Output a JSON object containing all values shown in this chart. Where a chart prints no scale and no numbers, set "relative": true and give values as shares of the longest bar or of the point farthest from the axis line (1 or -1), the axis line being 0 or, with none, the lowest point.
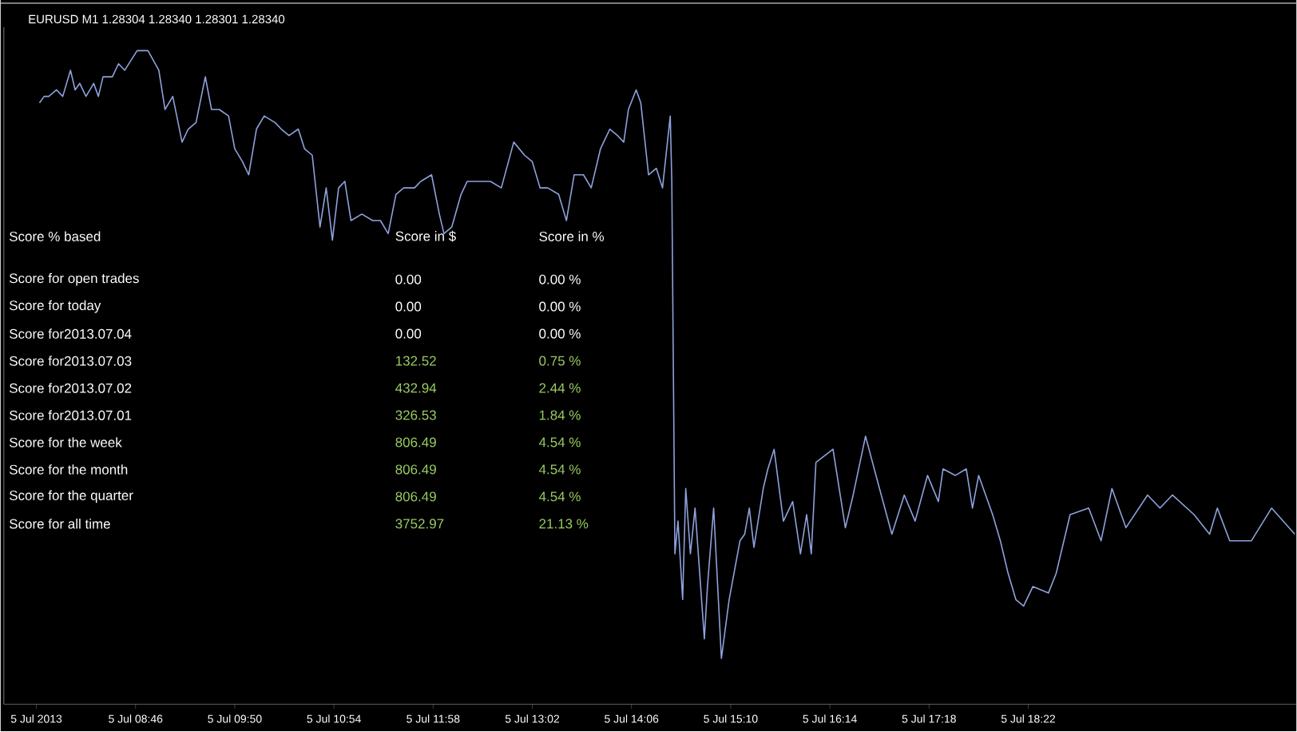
{
  "chart_data": {
    "type": "line",
    "title": "EURUSD M1  1.28304 1.28340 1.28301 1.28340",
    "relative": true,
    "x": [
      "2013-07-05T07:44",
      "2013-07-05T07:47",
      "2013-07-05T07:50",
      "2013-07-05T07:55",
      "2013-07-05T07:59",
      "2013-07-05T08:04",
      "2013-07-05T08:07",
      "2013-07-05T08:10",
      "2013-07-05T08:14",
      "2013-07-05T08:19",
      "2013-07-05T08:22",
      "2013-07-05T08:25",
      "2013-07-05T08:31",
      "2013-07-05T08:35",
      "2013-07-05T08:39",
      "2013-07-05T08:47",
      "2013-07-05T08:54",
      "2013-07-05T09:01",
      "2013-07-05T09:05",
      "2013-07-05T09:10",
      "2013-07-05T09:16",
      "2013-07-05T09:20",
      "2013-07-05T09:25",
      "2013-07-05T09:31",
      "2013-07-05T09:35",
      "2013-07-05T09:40",
      "2013-07-05T09:46",
      "2013-07-05T09:50",
      "2013-07-05T09:55",
      "2013-07-05T09:59",
      "2013-07-05T10:04",
      "2013-07-05T10:09",
      "2013-07-05T10:16",
      "2013-07-05T10:20",
      "2013-07-05T10:25",
      "2013-07-05T10:31",
      "2013-07-05T10:35",
      "2013-07-05T10:40",
      "2013-07-05T10:45",
      "2013-07-05T10:49",
      "2013-07-05T10:53",
      "2013-07-05T10:57",
      "2013-07-05T11:01",
      "2013-07-05T11:05",
      "2013-07-05T11:12",
      "2013-07-05T11:19",
      "2013-07-05T11:24",
      "2013-07-05T11:29",
      "2013-07-05T11:34",
      "2013-07-05T11:39",
      "2013-07-05T11:46",
      "2013-07-05T11:50",
      "2013-07-05T11:57",
      "2013-07-05T12:02",
      "2013-07-05T12:05",
      "2013-07-05T12:10",
      "2013-07-05T12:16",
      "2013-07-05T12:20",
      "2013-07-05T12:29",
      "2013-07-05T12:35",
      "2013-07-05T12:42",
      "2013-07-05T12:50",
      "2013-07-05T12:57",
      "2013-07-05T13:02",
      "2013-07-05T13:07",
      "2013-07-05T13:12",
      "2013-07-05T13:19",
      "2013-07-05T13:24",
      "2013-07-05T13:29",
      "2013-07-05T13:35",
      "2013-07-05T13:40",
      "2013-07-05T13:46",
      "2013-07-05T13:52",
      "2013-07-05T13:57",
      "2013-07-05T14:01",
      "2013-07-05T14:04",
      "2013-07-05T14:09",
      "2013-07-05T14:12",
      "2013-07-05T14:17",
      "2013-07-05T14:22",
      "2013-07-05T14:26",
      "2013-07-05T14:31",
      "2013-07-05T14:32",
      "2013-07-05T14:34",
      "2013-07-05T14:36",
      "2013-07-05T14:39",
      "2013-07-05T14:41",
      "2013-07-05T14:44",
      "2013-07-05T14:47",
      "2013-07-05T14:50",
      "2013-07-05T14:53",
      "2013-07-05T14:55",
      "2013-07-05T14:59",
      "2013-07-05T15:04",
      "2013-07-05T15:09",
      "2013-07-05T15:16",
      "2013-07-05T15:19",
      "2013-07-05T15:22",
      "2013-07-05T15:25",
      "2013-07-05T15:31",
      "2013-07-05T15:34",
      "2013-07-05T15:38",
      "2013-07-05T15:44",
      "2013-07-05T15:50",
      "2013-07-05T15:55",
      "2013-07-05T15:59",
      "2013-07-05T16:02",
      "2013-07-05T16:05",
      "2013-07-05T16:16",
      "2013-07-05T16:24",
      "2013-07-05T16:29",
      "2013-07-05T16:37",
      "2013-07-05T16:46",
      "2013-07-05T16:54",
      "2013-07-05T17:02",
      "2013-07-05T17:09",
      "2013-07-05T17:17",
      "2013-07-05T17:24",
      "2013-07-05T17:27",
      "2013-07-05T17:35",
      "2013-07-05T17:42",
      "2013-07-05T17:46",
      "2013-07-05T17:50",
      "2013-07-05T17:59",
      "2013-07-05T18:04",
      "2013-07-05T18:09",
      "2013-07-05T18:14",
      "2013-07-05T18:19",
      "2013-07-05T18:25",
      "2013-07-05T18:35",
      "2013-07-05T18:40",
      "2013-07-05T18:49",
      "2013-07-05T19:01",
      "2013-07-05T19:09",
      "2013-07-05T19:16",
      "2013-07-05T19:25",
      "2013-07-05T19:39",
      "2013-07-05T19:47",
      "2013-07-05T19:55",
      "2013-07-05T20:09",
      "2013-07-05T20:19",
      "2013-07-05T20:24",
      "2013-07-05T20:32",
      "2013-07-05T20:46",
      "2013-07-05T20:59",
      "2013-07-05T21:14"
    ],
    "series": [
      {
        "color": "#8ea2dc",
        "values": [
          0.92,
          0.93,
          0.93,
          0.94,
          0.93,
          0.97,
          0.94,
          0.95,
          0.93,
          0.95,
          0.93,
          0.96,
          0.96,
          0.98,
          0.97,
          1,
          1,
          0.97,
          0.91,
          0.93,
          0.86,
          0.88,
          0.89,
          0.96,
          0.91,
          0.91,
          0.9,
          0.85,
          0.83,
          0.81,
          0.88,
          0.9,
          0.89,
          0.88,
          0.87,
          0.88,
          0.85,
          0.84,
          0.73,
          0.79,
          0.71,
          0.79,
          0.8,
          0.74,
          0.75,
          0.74,
          0.74,
          0.72,
          0.78,
          0.79,
          0.79,
          0.8,
          0.81,
          0.75,
          0.72,
          0.73,
          0.78,
          0.8,
          0.8,
          0.8,
          0.79,
          0.86,
          0.84,
          0.83,
          0.79,
          0.79,
          0.78,
          0.74,
          0.81,
          0.81,
          0.79,
          0.85,
          0.88,
          0.87,
          0.86,
          0.91,
          0.94,
          0.92,
          0.81,
          0.82,
          0.79,
          0.9,
          0.8,
          0.23,
          0.28,
          0.16,
          0.33,
          0.23,
          0.3,
          0.2,
          0.1,
          0.18,
          0.3,
          0.07,
          0.16,
          0.25,
          0.26,
          0.3,
          0.24,
          0.33,
          0.36,
          0.39,
          0.28,
          0.31,
          0.23,
          0.29,
          0.23,
          0.37,
          0.39,
          0.27,
          0.32,
          0.41,
          0.33,
          0.26,
          0.32,
          0.28,
          0.35,
          0.31,
          0.36,
          0.35,
          0.36,
          0.3,
          0.35,
          0.29,
          0.25,
          0.2,
          0.16,
          0.15,
          0.18,
          0.17,
          0.2,
          0.29,
          0.3,
          0.25,
          0.33,
          0.27,
          0.32,
          0.3,
          0.32,
          0.29,
          0.26,
          0.3,
          0.25,
          0.25,
          0.3,
          0.26
        ]
      }
    ],
    "xlim": [
      "2013-07-05T07:21",
      "2013-07-05T21:15"
    ],
    "xticks": [
      {
        "value": "2013-07-05T07:42",
        "label": "5 Jul 2013"
      },
      {
        "value": "2013-07-05T08:46",
        "label": "5 Jul 08:46"
      },
      {
        "value": "2013-07-05T09:50",
        "label": "5 Jul 09:50"
      },
      {
        "value": "2013-07-05T10:54",
        "label": "5 Jul 10:54"
      },
      {
        "value": "2013-07-05T11:58",
        "label": "5 Jul 11:58"
      },
      {
        "value": "2013-07-05T13:02",
        "label": "5 Jul 13:02"
      },
      {
        "value": "2013-07-05T14:06",
        "label": "5 Jul 14:06"
      },
      {
        "value": "2013-07-05T15:10",
        "label": "5 Jul 15:10"
      },
      {
        "value": "2013-07-05T16:14",
        "label": "5 Jul 16:14"
      },
      {
        "value": "2013-07-05T17:18",
        "label": "5 Jul 17:18"
      },
      {
        "value": "2013-07-05T18:22",
        "label": "5 Jul 18:22"
      }
    ],
    "annotations": [
      "Score % based",
      "Score in $",
      "Score in %",
      "Score for open trades",
      "0.00",
      "0.00 %",
      "Score for today",
      "0.00",
      "0.00 %",
      "Score for2013.07.04",
      "0.00",
      "0.00 %",
      "Score for2013.07.03",
      "132.52",
      "0.75 %",
      "Score for2013.07.02",
      "432.94",
      "2.44 %",
      "Score for2013.07.01",
      "326.53",
      "1.84 %",
      "Score for the week",
      "806.49",
      "4.54 %",
      "Score for the month",
      "806.49",
      "4.54 %",
      "Score for the quarter",
      "806.49",
      "4.54 %",
      "Score for all time",
      "3752.97",
      "21.13 %"
    ]
  }
}
